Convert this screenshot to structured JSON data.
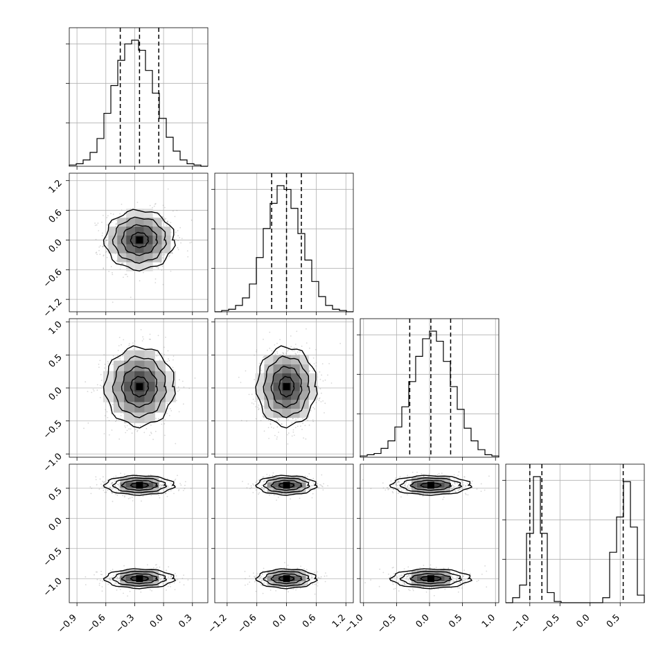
{
  "chart_data": {
    "type": "corner",
    "title": "",
    "grid": true,
    "colors": {
      "line": "#000000",
      "grid": "#b0b0b0",
      "scatter": "#8c8c8c",
      "density_low": "#ffffff",
      "density_high": "#000000"
    },
    "parameters": [
      {
        "index": 0,
        "label": "",
        "range": [
          -0.98,
          0.46
        ],
        "ticks": [
          -0.9,
          -0.6,
          -0.3,
          0.0,
          0.3
        ],
        "tick_labels": [
          "−0.9",
          "−0.6",
          "−0.3",
          "0.0",
          "0.3"
        ],
        "quantiles": [
          -0.45,
          -0.25,
          -0.05
        ],
        "mean": -0.25,
        "sd": 0.18
      },
      {
        "index": 1,
        "label": "",
        "range": [
          -1.45,
          1.35
        ],
        "ticks": [
          -1.2,
          -0.6,
          0.0,
          0.6,
          1.2
        ],
        "tick_labels": [
          "−1.2",
          "−0.6",
          "0.0",
          "0.6",
          "1.2"
        ],
        "quantiles": [
          -0.3,
          0.0,
          0.3
        ],
        "mean": 0.0,
        "sd": 0.3
      },
      {
        "index": 2,
        "label": "",
        "range": [
          -1.05,
          1.05
        ],
        "ticks": [
          -1.0,
          -0.5,
          0.0,
          0.5,
          1.0
        ],
        "tick_labels": [
          "−1.0",
          "−0.5",
          "0.0",
          "0.5",
          "1.0"
        ],
        "quantiles": [
          -0.3,
          0.02,
          0.32
        ],
        "mean": 0.02,
        "sd": 0.3
      },
      {
        "index": 3,
        "label": "",
        "range": [
          -1.4,
          0.9
        ],
        "ticks": [
          -1.0,
          -0.5,
          0.0,
          0.5
        ],
        "tick_labels": [
          "−1.0",
          "−0.5",
          "0.0",
          "0.5"
        ],
        "quantiles": [
          -1.0,
          -0.8,
          0.55
        ],
        "bimodal": true,
        "modes": [
          {
            "mean": -1.0,
            "sd": 0.08,
            "weight": 0.5
          },
          {
            "mean": 0.55,
            "sd": 0.08,
            "weight": 0.5
          }
        ]
      }
    ],
    "histograms": [
      {
        "param": 0,
        "bins": 20,
        "values": [
          1,
          2,
          5,
          11,
          22,
          42,
          64,
          84,
          97,
          100,
          92,
          76,
          58,
          38,
          23,
          12,
          5,
          2,
          1,
          0
        ]
      },
      {
        "param": 1,
        "bins": 20,
        "values": [
          0,
          1,
          2,
          5,
          11,
          22,
          43,
          66,
          86,
          100,
          97,
          82,
          62,
          41,
          24,
          12,
          5,
          2,
          1,
          0
        ]
      },
      {
        "param": 2,
        "bins": 20,
        "values": [
          1,
          2,
          3,
          7,
          13,
          24,
          40,
          60,
          80,
          94,
          100,
          92,
          76,
          56,
          38,
          23,
          13,
          6,
          2,
          1
        ]
      },
      {
        "param": 3,
        "bins": 20,
        "values": [
          0,
          4,
          14,
          55,
          100,
          55,
          8,
          1,
          0,
          0,
          0,
          0,
          0,
          0,
          4,
          40,
          68,
          96,
          60,
          6
        ]
      }
    ],
    "pairs": [
      {
        "row": 1,
        "col": 0,
        "correlation": 0.0
      },
      {
        "row": 2,
        "col": 0,
        "correlation": 0.0
      },
      {
        "row": 2,
        "col": 1,
        "correlation": 0.0
      },
      {
        "row": 3,
        "col": 0,
        "correlation": 0.0
      },
      {
        "row": 3,
        "col": 1,
        "correlation": 0.0
      },
      {
        "row": 3,
        "col": 2,
        "correlation": 0.0
      }
    ]
  }
}
